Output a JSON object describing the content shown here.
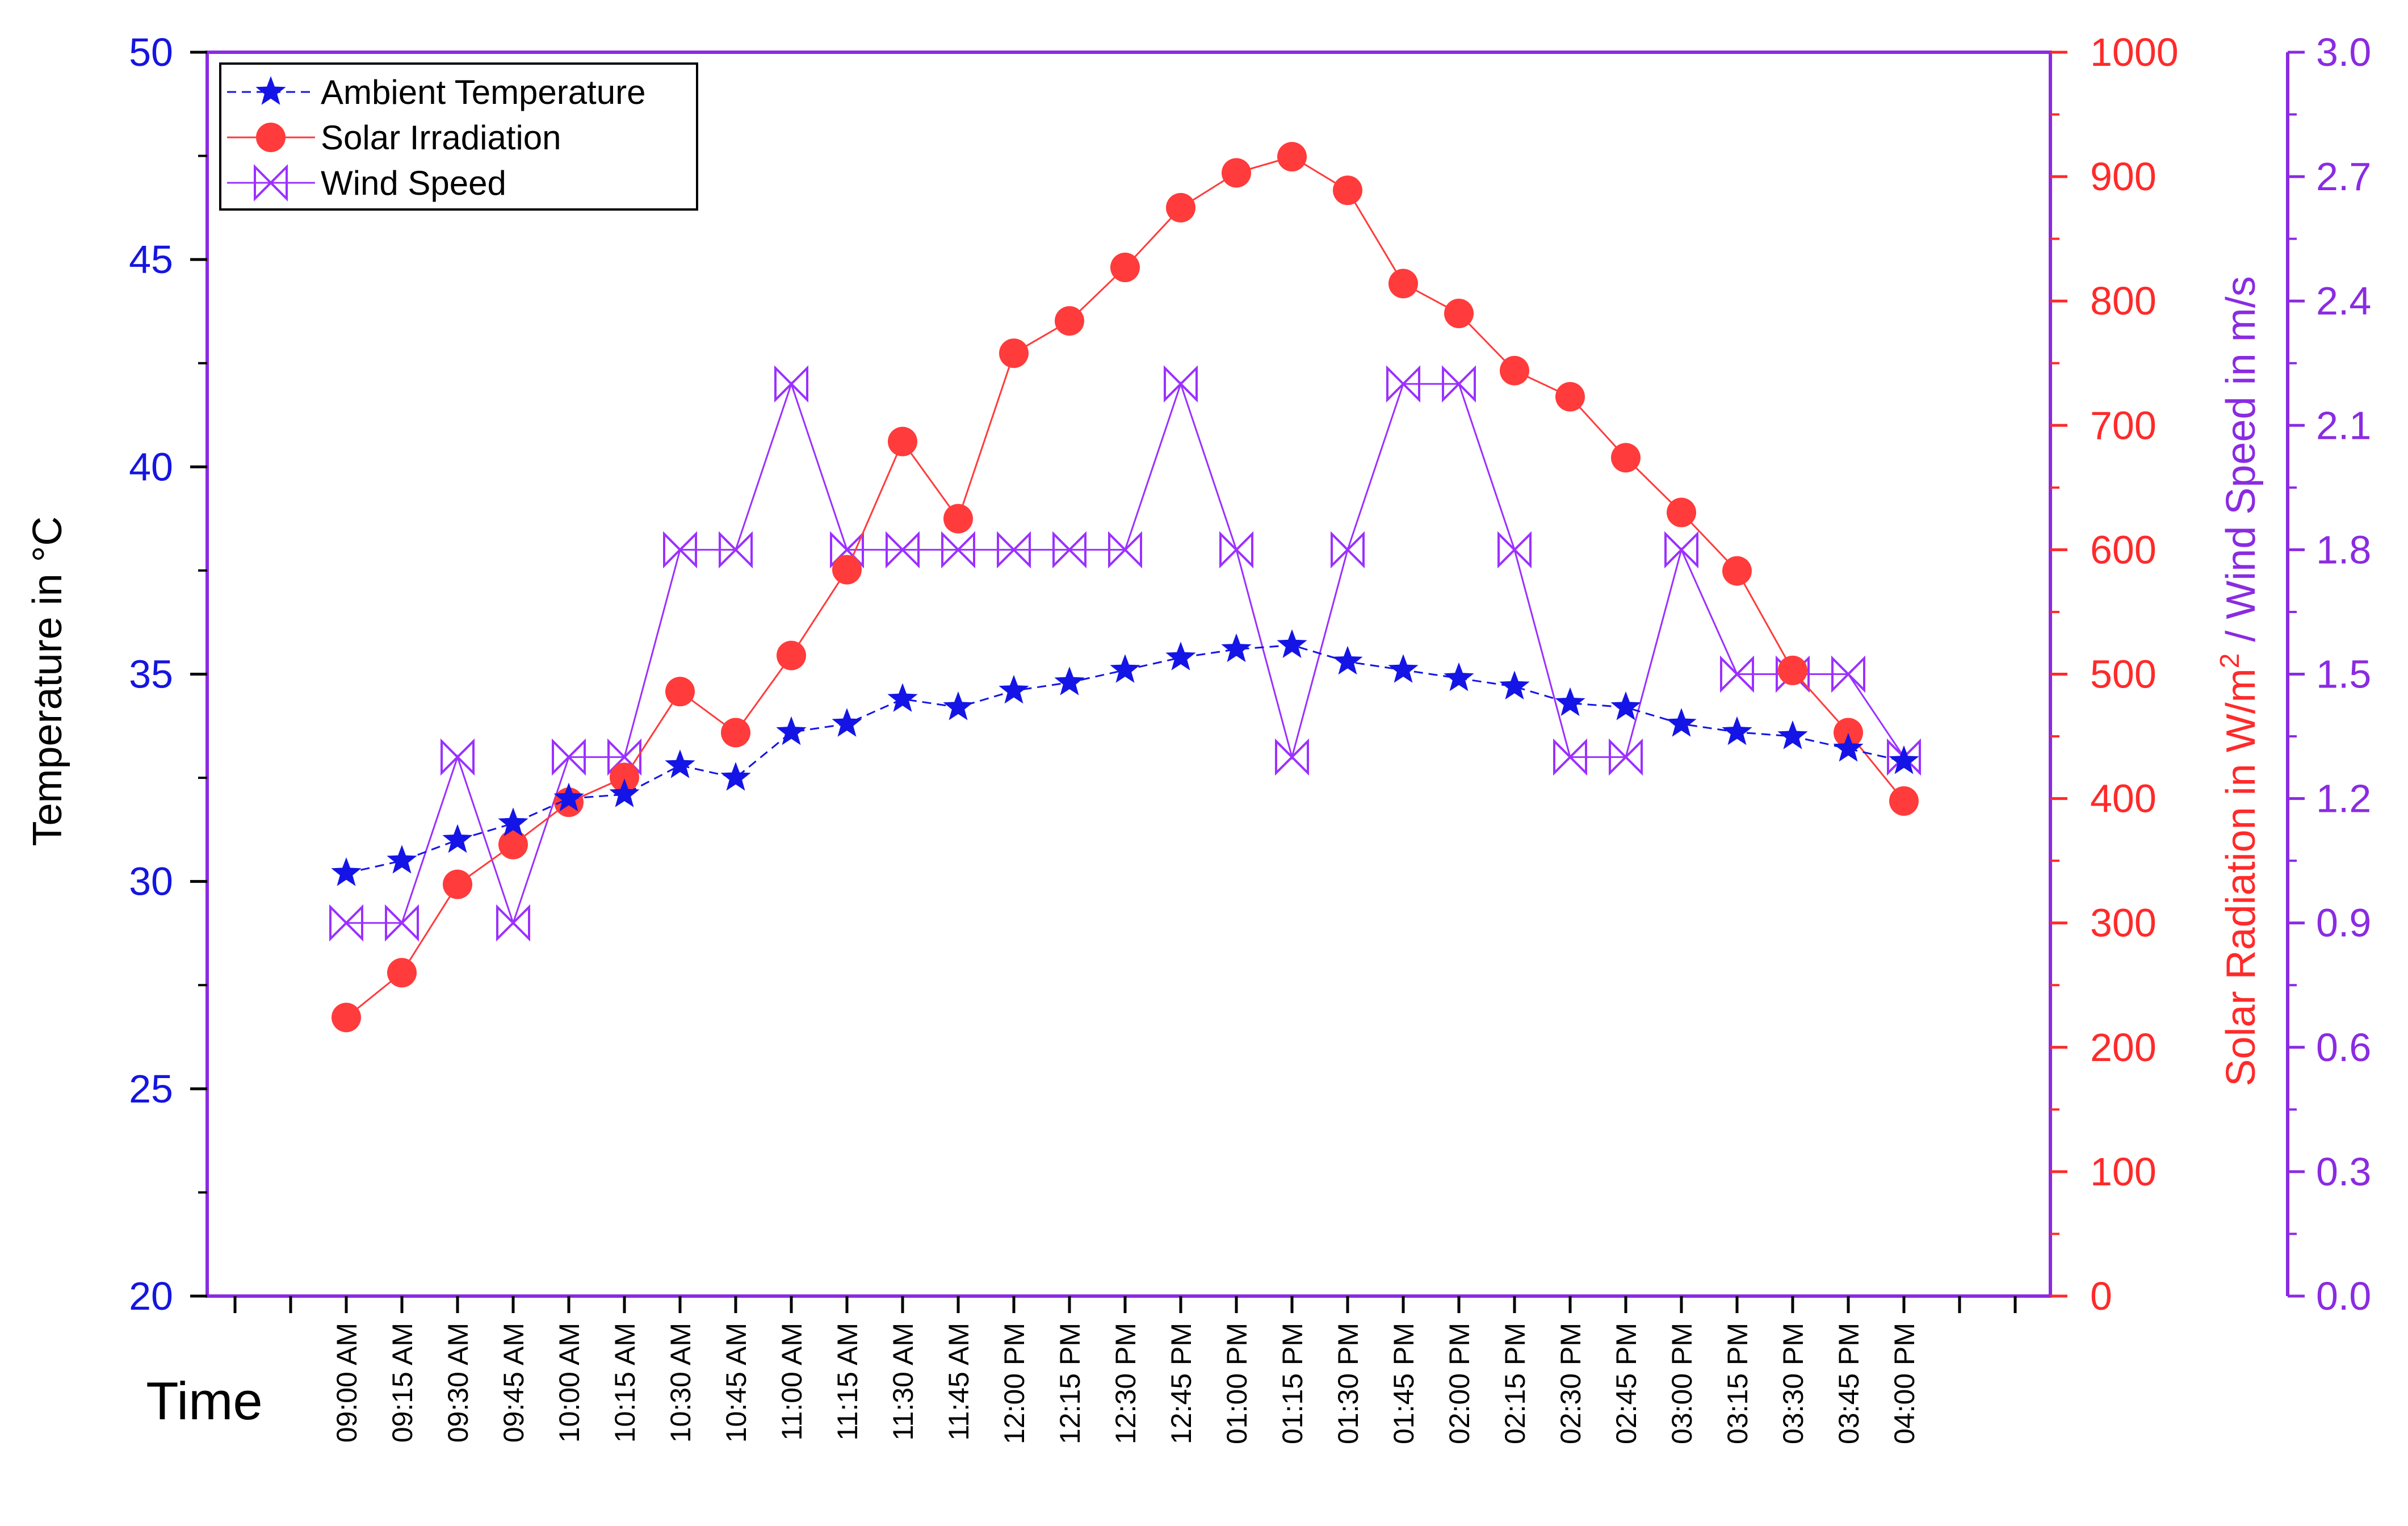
{
  "chart_data": {
    "type": "line",
    "title": "",
    "xlabel": "Time",
    "categories": [
      "09:00 AM",
      "09:15 AM",
      "09:30 AM",
      "09:45 AM",
      "10:00 AM",
      "10:15 AM",
      "10:30 AM",
      "10:45 AM",
      "11:00 AM",
      "11:15 AM",
      "11:30 AM",
      "11:45 AM",
      "12:00 PM",
      "12:15 PM",
      "12:30 PM",
      "12:45 PM",
      "01:00 PM",
      "01:15 PM",
      "01:30 PM",
      "01:45 PM",
      "02:00 PM",
      "02:15 PM",
      "02:30 PM",
      "02:45 PM",
      "03:00 PM",
      "03:15 PM",
      "03:30 PM",
      "03:45 PM",
      "04:00 PM"
    ],
    "axes": {
      "left": {
        "label": "Temperature in °C",
        "min": 20,
        "max": 50,
        "ticks": [
          "20",
          "25",
          "30",
          "35",
          "40",
          "45",
          "50"
        ]
      },
      "right1": {
        "label_prefix": "Solar Radiation in W/m",
        "label_sup": "2",
        "label_suffix": " / Wind Speed in m/s",
        "min": 0,
        "max": 1000,
        "ticks": [
          "0",
          "100",
          "200",
          "300",
          "400",
          "500",
          "600",
          "700",
          "800",
          "900",
          "1000"
        ]
      },
      "right2": {
        "min": 0,
        "max": 3.0,
        "ticks": [
          "0.0",
          "0.3",
          "0.6",
          "0.9",
          "1.2",
          "1.5",
          "1.8",
          "2.1",
          "2.4",
          "2.7",
          "3.0"
        ]
      }
    },
    "series": [
      {
        "name": "Ambient Temperature",
        "axis": "left",
        "color": "#1414e6",
        "marker": "star",
        "values": [
          30.2,
          30.5,
          31.0,
          31.4,
          32.0,
          32.1,
          32.8,
          32.5,
          33.6,
          33.8,
          34.4,
          34.2,
          34.6,
          34.8,
          35.1,
          35.4,
          35.6,
          35.7,
          35.3,
          35.1,
          34.9,
          34.7,
          34.3,
          34.2,
          33.8,
          33.6,
          33.5,
          33.2,
          32.9
        ]
      },
      {
        "name": "Solar Irradiation",
        "axis": "right1",
        "color": "#ff3b3b",
        "marker": "circle",
        "values": [
          224,
          260,
          331,
          363,
          397,
          417,
          486,
          453,
          515,
          584,
          687,
          625,
          758,
          784,
          827,
          875,
          903,
          916,
          889,
          814,
          790,
          744,
          723,
          674,
          630,
          583,
          503,
          453,
          398
        ]
      },
      {
        "name": "Wind Speed",
        "axis": "right2",
        "color": "#9b30ff",
        "marker": "boxx",
        "values": [
          0.9,
          0.9,
          1.3,
          0.9,
          1.3,
          1.3,
          1.8,
          1.8,
          2.2,
          1.8,
          1.8,
          1.8,
          1.8,
          1.8,
          1.8,
          2.2,
          1.8,
          1.3,
          1.8,
          2.2,
          2.2,
          1.8,
          1.3,
          1.3,
          1.8,
          1.5,
          1.5,
          1.5,
          1.3
        ]
      }
    ],
    "legend_position": "top-left",
    "grid": false
  }
}
